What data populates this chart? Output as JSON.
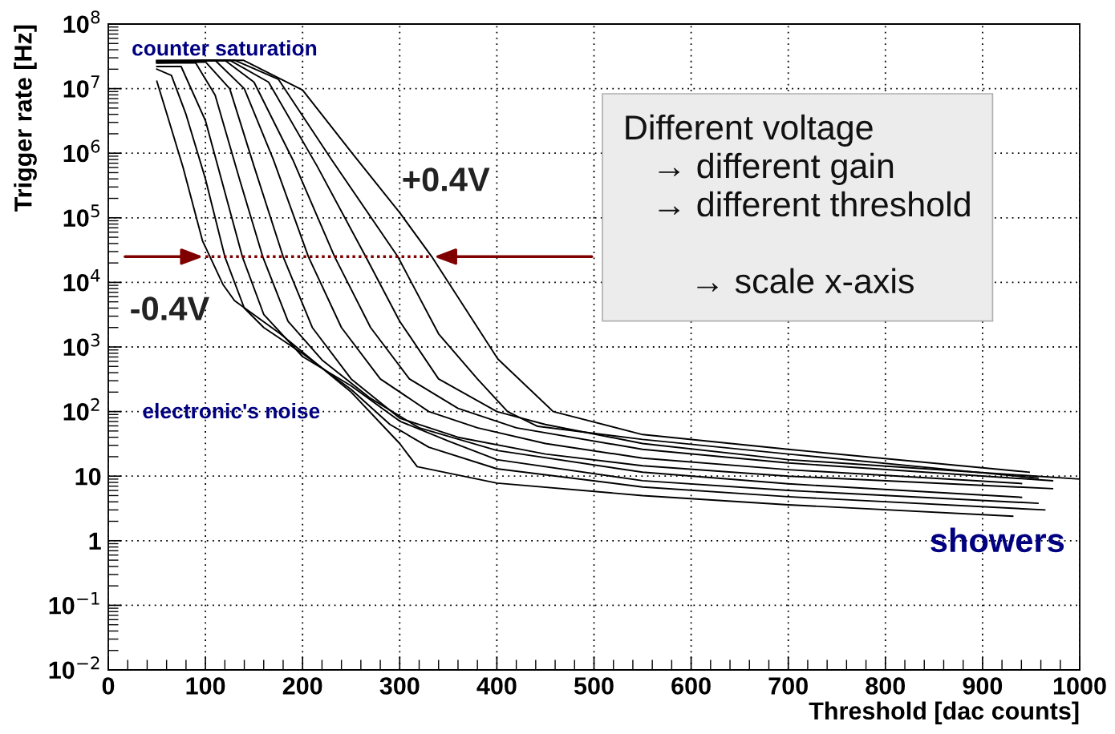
{
  "chart_data": {
    "type": "line",
    "xlabel": "Threshold [dac counts]",
    "ylabel": "Trigger rate [Hz]",
    "log": "y",
    "xlim": [
      0,
      1000
    ],
    "xticks": [
      0,
      100,
      200,
      300,
      400,
      500,
      600,
      700,
      800,
      900,
      1000
    ],
    "ylim": [
      0.01,
      100000000.0
    ],
    "yticks": [
      {
        "value": 0.01,
        "label": "10$^{−2}$"
      },
      {
        "value": 0.1,
        "label": "10$^{−1}$"
      },
      1,
      10,
      {
        "value": 100,
        "label": "10$^{2}$"
      },
      {
        "value": 1000,
        "label": "10$^{3}$"
      },
      {
        "value": 10000,
        "label": "10$^{4}$"
      },
      {
        "value": 100000,
        "label": "10$^{5}$"
      },
      {
        "value": 1000000,
        "label": "10$^{6}$"
      },
      {
        "value": 10000000,
        "label": "10$^{7}$"
      },
      {
        "value": 100000000,
        "label": "10$^{8}$"
      }
    ],
    "grid": true,
    "marker": "none",
    "line_style": "solid",
    "legend": false,
    "series": [
      {
        "color": "#000000",
        "x": [
          50,
          59,
          77,
          97,
          118,
          130,
          177,
          250,
          300,
          318,
          400,
          550,
          700,
          931
        ],
        "values": [
          13000000.0,
          4700000.0,
          600000.0,
          44000.0,
          9300,
          5200,
          1600,
          200,
          32,
          14,
          7.8,
          5.0,
          3.6,
          2.4
        ]
      },
      {
        "color": "#000000",
        "x": [
          50,
          65,
          80,
          100,
          120,
          140,
          160,
          200,
          250,
          290,
          330,
          400,
          550,
          700,
          964
        ],
        "values": [
          20000000.0,
          16000000.0,
          4000000.0,
          400000.0,
          25000.0,
          4000,
          2000,
          790,
          220,
          63,
          28,
          13,
          6.8,
          4.8,
          3.0
        ]
      },
      {
        "color": "#000000",
        "x": [
          50,
          75,
          100,
          120,
          138,
          160,
          200,
          250,
          300,
          350,
          400,
          550,
          700,
          957
        ],
        "values": [
          22000000.0,
          22000000.0,
          3200000.0,
          250000.0,
          25000.0,
          3200,
          710,
          250,
          71,
          35,
          18,
          8.5,
          6.0,
          3.8
        ]
      },
      {
        "color": "#000000",
        "x": [
          50,
          90,
          110,
          135,
          159,
          185,
          220,
          270,
          320,
          400,
          550,
          700,
          940
        ],
        "values": [
          25000000.0,
          25000000.0,
          7900000.0,
          400000.0,
          25000.0,
          2500,
          630,
          160,
          56,
          25,
          11.5,
          7.6,
          4.7
        ]
      },
      {
        "color": "#000000",
        "x": [
          50,
          100,
          125,
          150,
          180,
          210,
          250,
          300,
          360,
          450,
          550,
          700,
          972
        ],
        "values": [
          25000000.0,
          26000000.0,
          10000000.0,
          630000.0,
          25000.0,
          2000,
          320,
          79,
          40,
          22,
          14.5,
          10,
          6.4
        ]
      },
      {
        "color": "#000000",
        "x": [
          50,
          110,
          140,
          170,
          206,
          240,
          280,
          330,
          380,
          450,
          550,
          700,
          940
        ],
        "values": [
          26000000.0,
          27500000.0,
          10000000.0,
          790000.0,
          25000.0,
          2000,
          320,
          100,
          56,
          32,
          19,
          12.6,
          7.7
        ]
      },
      {
        "color": "#000000",
        "x": [
          50,
          120,
          150,
          190,
          233,
          270,
          310,
          360,
          420,
          550,
          700,
          972
        ],
        "values": [
          26000000.0,
          27500000.0,
          12600000.0,
          790000.0,
          25000.0,
          2000,
          320,
          112,
          56,
          26,
          16,
          8.5
        ]
      },
      {
        "color": "#000000",
        "x": [
          50,
          125,
          165,
          215,
          265,
          300,
          340,
          400,
          450,
          550,
          700,
          1000
        ],
        "values": [
          27000000.0,
          27500000.0,
          12600000.0,
          630000.0,
          25000.0,
          2500,
          320,
          100,
          63,
          32,
          18,
          9
        ]
      },
      {
        "color": "#000000",
        "x": [
          50,
          130,
          175,
          230,
          298,
          340,
          380,
          411,
          442,
          550,
          700,
          957
        ],
        "values": [
          27000000.0,
          27500000.0,
          14000000.0,
          790000.0,
          25000.0,
          1600,
          320,
          100,
          59,
          37,
          22,
          9.3
        ]
      },
      {
        "color": "#000000",
        "x": [
          50,
          139,
          200,
          251,
          300,
          333,
          401,
          458,
          550,
          700,
          948
        ],
        "values": [
          27000000.0,
          27500000.0,
          9500000.0,
          1000000.0,
          120000.0,
          25000.0,
          650,
          100,
          44,
          26,
          11.5
        ]
      }
    ],
    "ref_lines": [
      {
        "axis": "y",
        "value": 25000,
        "color": "#800000",
        "line_style": "dotted"
      }
    ],
    "annotations": [
      "counter saturation",
      "electronic's noise",
      "showers",
      "+0.4V",
      "-0.4V",
      "Different voltage\n   → different gain\n   → different threshold\n\n       → scale x-axis"
    ]
  }
}
